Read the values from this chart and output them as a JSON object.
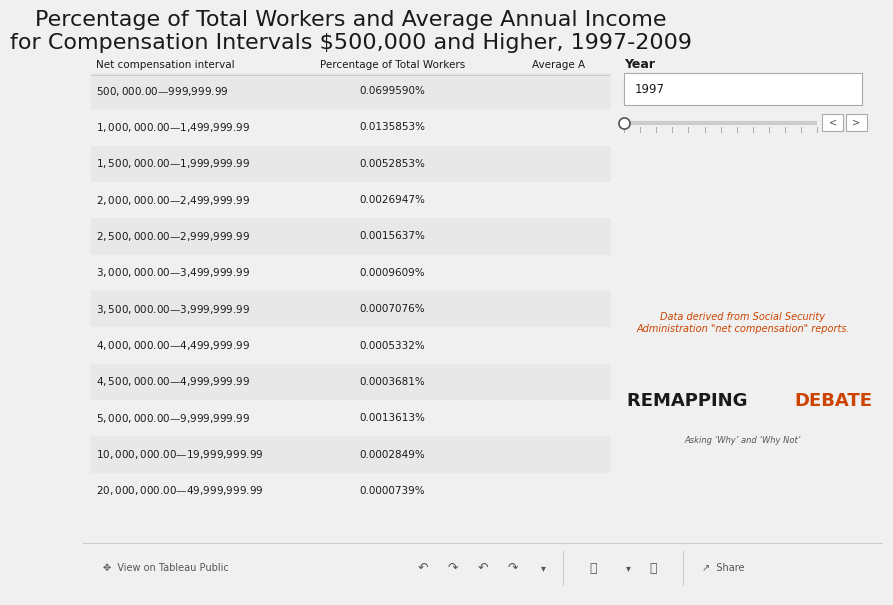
{
  "title": "Percentage of Total Workers and Average Annual Income\nfor Compensation Intervals $500,000 and Higher, 1997-2009",
  "title_fontsize": 16,
  "col_headers": [
    "Net compensation interval",
    "Percentage of Total Workers",
    "Average A"
  ],
  "rows": [
    [
      "$500,000.00 — $999,999.99",
      "0.0699590%",
      ""
    ],
    [
      "$1,000,000.00 — $1,499,999.99",
      "0.0135853%",
      ""
    ],
    [
      "$1,500,000.00 — $1,999,999.99",
      "0.0052853%",
      ""
    ],
    [
      "$2,000,000.00 — $2,499,999.99",
      "0.0026947%",
      ""
    ],
    [
      "$2,500,000.00 — $2,999,999.99",
      "0.0015637%",
      ""
    ],
    [
      "$3,000,000.00 — $3,499,999.99",
      "0.0009609%",
      ""
    ],
    [
      "$3,500,000.00 — $3,999,999.99",
      "0.0007076%",
      ""
    ],
    [
      "$4,000,000.00 — $4,499,999.99",
      "0.0005332%",
      ""
    ],
    [
      "$4,500,000.00 — $4,999,999.99",
      "0.0003681%",
      ""
    ],
    [
      "$5,000,000.00 — $9,999,999.99",
      "0.0013613%",
      ""
    ],
    [
      "$10,000,000.00 — $19,999,999.99",
      "0.0002849%",
      ""
    ],
    [
      "$20,000,000.00 — $49,999,999.99",
      "0.0000739%",
      ""
    ]
  ],
  "shaded_rows": [
    0,
    2,
    4,
    6,
    8,
    10
  ],
  "row_shading_color": "#e8e8e8",
  "sidebar_title": "Year",
  "sidebar_year": "1997",
  "sidebar_source": "Data derived from Social Security\nAdministration \"net compensation\" reports.",
  "sidebar_source_color": "#cc4400",
  "brand_remapping": "REMAPPING ",
  "brand_debate": "DEBATE",
  "brand_subtext": "Asking ‘Why’ and ‘Why Not’",
  "brand_color": "#1a1a1a",
  "brand_debate_color": "#cc4400",
  "footer_text": "View on Tableau Public",
  "bg_color": "#f0f0f0"
}
